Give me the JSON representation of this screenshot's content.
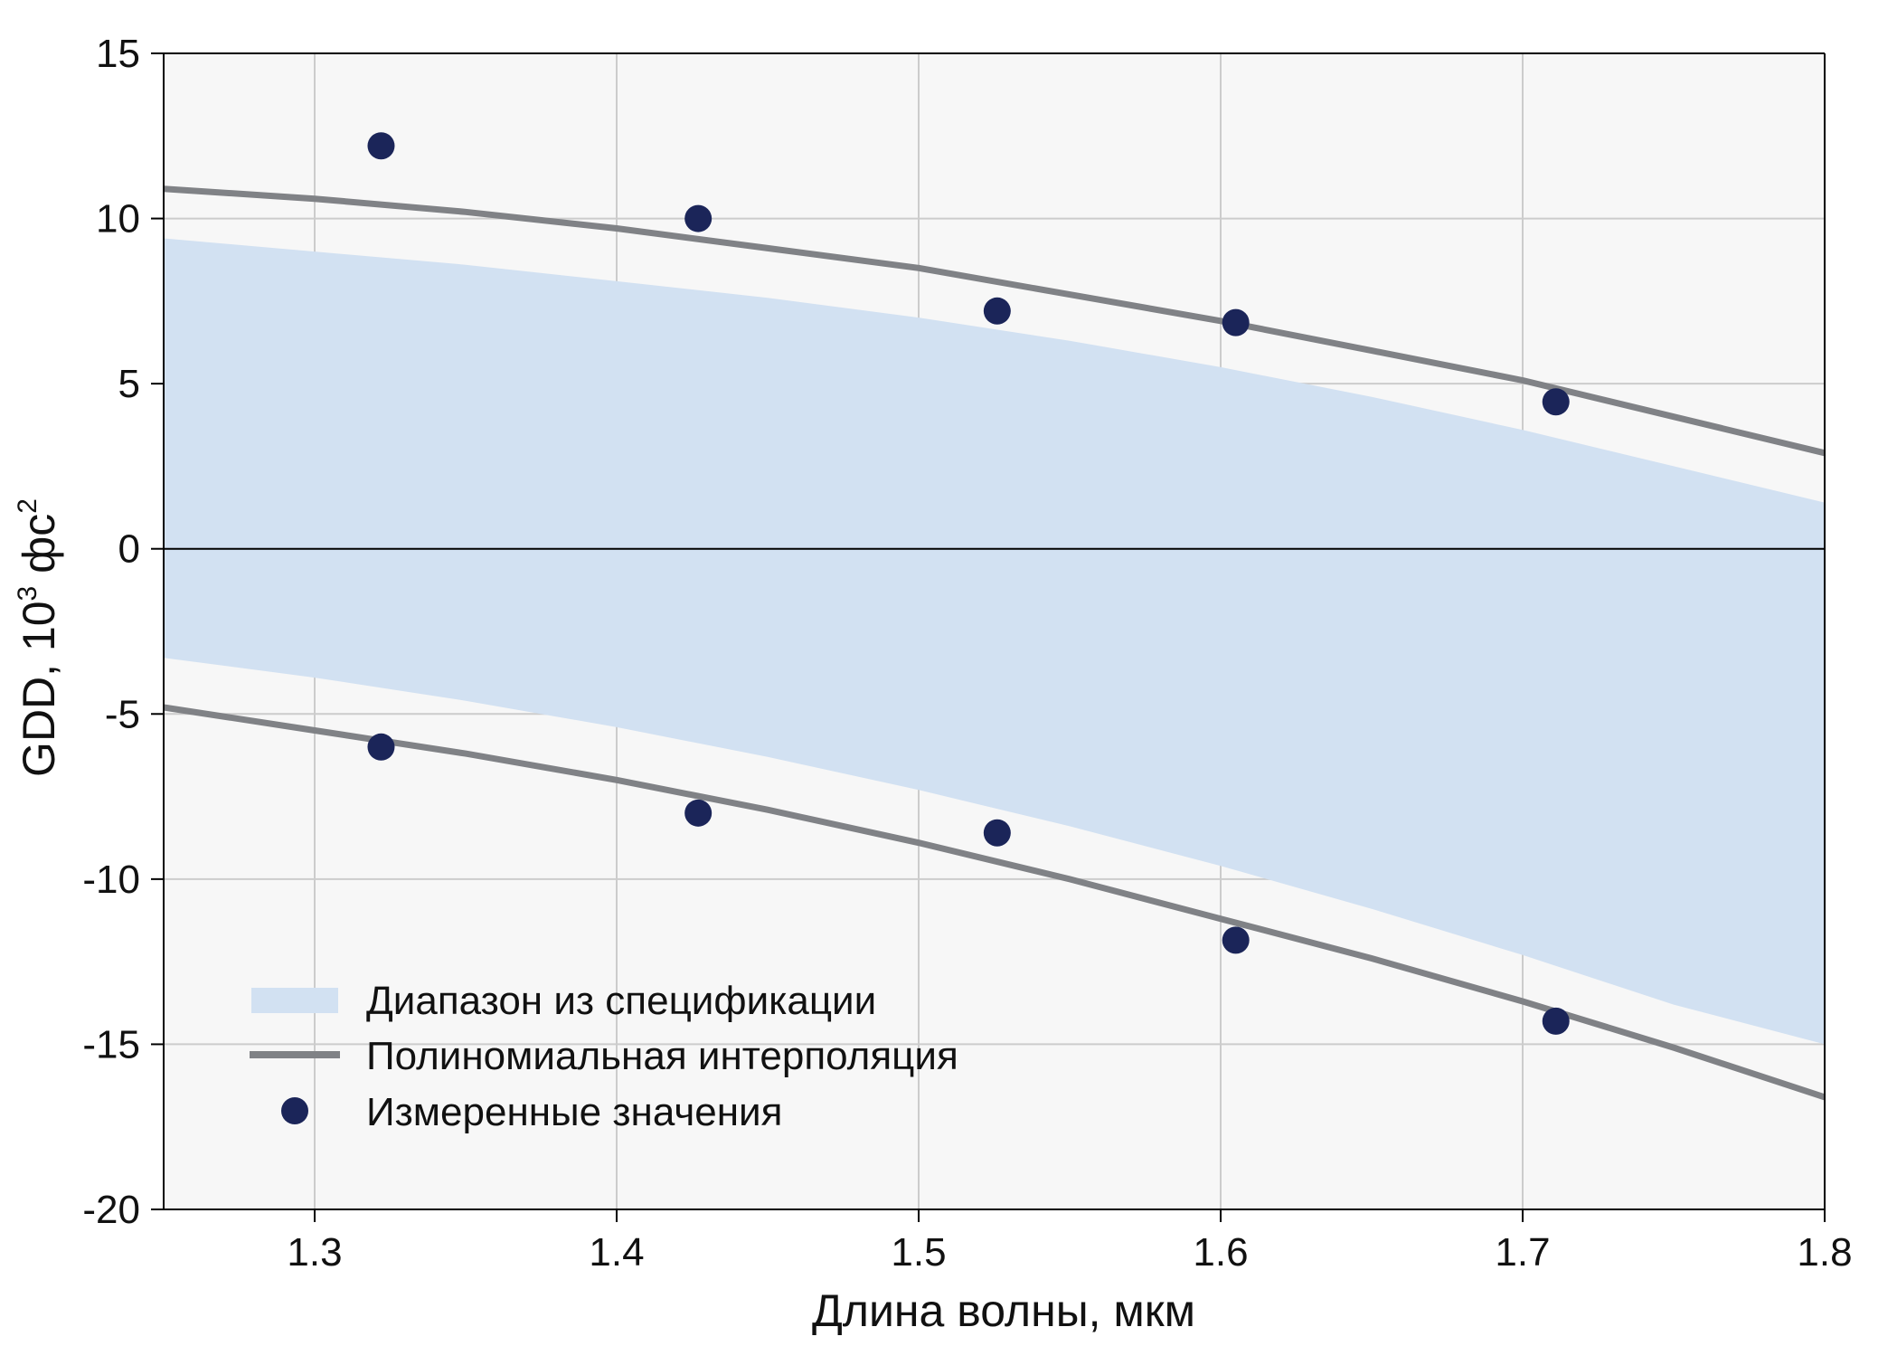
{
  "chart_data": {
    "type": "scatter",
    "xlabel": "Длина волны, мкм",
    "ylabel_main": "GDD, 10",
    "ylabel_sup": "3",
    "ylabel_unit": " фс",
    "ylabel_unit_sup": "2",
    "xlim": [
      1.25,
      1.8
    ],
    "ylim": [
      -20,
      15
    ],
    "xticks": [
      {
        "value": 1.3,
        "label": "1.3"
      },
      {
        "value": 1.4,
        "label": "1.4"
      },
      {
        "value": 1.5,
        "label": "1.5"
      },
      {
        "value": 1.6,
        "label": "1.6"
      },
      {
        "value": 1.7,
        "label": "1.7"
      },
      {
        "value": 1.8,
        "label": "1.8"
      }
    ],
    "yticks": [
      {
        "value": 15,
        "label": "15"
      },
      {
        "value": 10,
        "label": "10"
      },
      {
        "value": 5,
        "label": "5"
      },
      {
        "value": 0,
        "label": "0"
      },
      {
        "value": -5,
        "label": "-5"
      },
      {
        "value": -10,
        "label": "-10"
      },
      {
        "value": -15,
        "label": "-15"
      },
      {
        "value": -20,
        "label": "-20"
      }
    ],
    "grid": true,
    "legend_position": "bottom-left",
    "colors": {
      "plot_background": "#f7f7f7",
      "band": "#d2e1f2",
      "curve": "#808286",
      "points": "#1b2559",
      "grid": "#cccccc",
      "axis": "#000000"
    },
    "spec_range": {
      "name": "Диапазон из спецификации",
      "x": [
        1.25,
        1.3,
        1.35,
        1.4,
        1.45,
        1.5,
        1.55,
        1.6,
        1.65,
        1.7,
        1.75,
        1.8
      ],
      "upper": [
        9.4,
        9.0,
        8.6,
        8.1,
        7.6,
        7.0,
        6.3,
        5.5,
        4.6,
        3.6,
        2.5,
        1.4
      ],
      "lower": [
        -3.3,
        -3.9,
        -4.6,
        -5.4,
        -6.3,
        -7.3,
        -8.4,
        -9.6,
        -10.9,
        -12.3,
        -13.8,
        -15.0
      ]
    },
    "interpolation": {
      "name": "Полиномиальная интерполяция",
      "x": [
        1.25,
        1.3,
        1.35,
        1.4,
        1.45,
        1.5,
        1.55,
        1.6,
        1.65,
        1.7,
        1.75,
        1.8
      ],
      "upper": [
        10.9,
        10.6,
        10.2,
        9.7,
        9.1,
        8.5,
        7.7,
        6.9,
        6.0,
        5.1,
        4.0,
        2.9
      ],
      "lower": [
        -4.8,
        -5.5,
        -6.2,
        -7.0,
        -7.9,
        -8.9,
        -10.0,
        -11.2,
        -12.4,
        -13.7,
        -15.1,
        -16.6
      ]
    },
    "measured": {
      "name": "Измеренные значения",
      "points": [
        {
          "x": 1.322,
          "y": 12.2
        },
        {
          "x": 1.427,
          "y": 10.0
        },
        {
          "x": 1.526,
          "y": 7.2
        },
        {
          "x": 1.605,
          "y": 6.85
        },
        {
          "x": 1.711,
          "y": 4.45
        },
        {
          "x": 1.322,
          "y": -6.0
        },
        {
          "x": 1.427,
          "y": -8.0
        },
        {
          "x": 1.526,
          "y": -8.6
        },
        {
          "x": 1.605,
          "y": -11.85
        },
        {
          "x": 1.711,
          "y": -14.3
        }
      ]
    }
  }
}
